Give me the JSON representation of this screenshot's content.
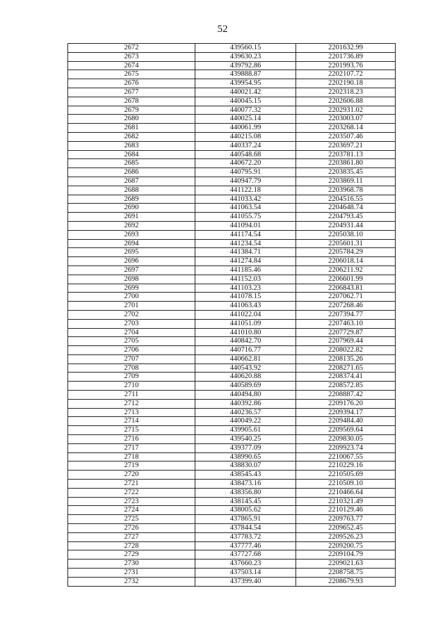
{
  "page_number": "52",
  "rows": [
    [
      "2672",
      "439560.15",
      "2201632.99"
    ],
    [
      "2673",
      "439630.23",
      "2201736.89"
    ],
    [
      "2674",
      "439792.86",
      "2201993.76"
    ],
    [
      "2675",
      "439888.87",
      "2202107.72"
    ],
    [
      "2676",
      "439954.95",
      "2202190.18"
    ],
    [
      "2677",
      "440021.42",
      "2202318.23"
    ],
    [
      "2678",
      "440045.15",
      "2202606.88"
    ],
    [
      "2679",
      "440077.32",
      "2202931.02"
    ],
    [
      "2680",
      "440025.14",
      "2203003.07"
    ],
    [
      "2681",
      "440061.99",
      "2203268.14"
    ],
    [
      "2682",
      "440215.08",
      "2203507.46"
    ],
    [
      "2683",
      "440337.24",
      "2203697.21"
    ],
    [
      "2684",
      "440548.68",
      "2203781.13"
    ],
    [
      "2685",
      "440672.20",
      "2203861.80"
    ],
    [
      "2686",
      "440795.91",
      "2203835.45"
    ],
    [
      "2687",
      "440947.79",
      "2203869.11"
    ],
    [
      "2688",
      "441122.18",
      "2203968.78"
    ],
    [
      "2689",
      "441033.42",
      "2204516.55"
    ],
    [
      "2690",
      "441063.54",
      "2204648.74"
    ],
    [
      "2691",
      "441055.75",
      "2204793.45"
    ],
    [
      "2692",
      "441094.01",
      "2204931.44"
    ],
    [
      "2693",
      "441174.54",
      "2205038.10"
    ],
    [
      "2694",
      "441234.54",
      "2205601.31"
    ],
    [
      "2695",
      "441384.71",
      "2205784.29"
    ],
    [
      "2696",
      "441274.84",
      "2206018.14"
    ],
    [
      "2697",
      "441185.46",
      "2206211.92"
    ],
    [
      "2698",
      "441152.03",
      "2206601.99"
    ],
    [
      "2699",
      "441103.23",
      "2206843.81"
    ],
    [
      "2700",
      "441078.15",
      "2207062.71"
    ],
    [
      "2701",
      "441063.43",
      "2207268.46"
    ],
    [
      "2702",
      "441022.04",
      "2207394.77"
    ],
    [
      "2703",
      "441051.09",
      "2207463.10"
    ],
    [
      "2704",
      "441010.80",
      "2207729.87"
    ],
    [
      "2705",
      "440842.70",
      "2207969.44"
    ],
    [
      "2706",
      "440716.77",
      "2208022.82"
    ],
    [
      "2707",
      "440662.81",
      "2208135.26"
    ],
    [
      "2708",
      "440543.92",
      "2208271.65"
    ],
    [
      "2709",
      "440620.88",
      "2208374.41"
    ],
    [
      "2710",
      "440589.69",
      "2208572.85"
    ],
    [
      "2711",
      "440494.80",
      "2208887.42"
    ],
    [
      "2712",
      "440392.86",
      "2209176.20"
    ],
    [
      "2713",
      "440236.57",
      "2209394.17"
    ],
    [
      "2714",
      "440049.22",
      "2209484.40"
    ],
    [
      "2715",
      "439905.61",
      "2209569.64"
    ],
    [
      "2716",
      "439540.25",
      "2209830.05"
    ],
    [
      "2717",
      "439377.09",
      "2209923.74"
    ],
    [
      "2718",
      "438990.65",
      "2210067.55"
    ],
    [
      "2719",
      "438830.07",
      "2210229.16"
    ],
    [
      "2720",
      "438545.43",
      "2210505.69"
    ],
    [
      "2721",
      "438473.16",
      "2210509.10"
    ],
    [
      "2722",
      "438356.80",
      "2210466.64"
    ],
    [
      "2723",
      "438145.45",
      "2210321.49"
    ],
    [
      "2724",
      "438005.62",
      "2210129.46"
    ],
    [
      "2725",
      "437865.91",
      "2209763.77"
    ],
    [
      "2726",
      "437844.54",
      "2209652.45"
    ],
    [
      "2727",
      "437783.72",
      "2209526.23"
    ],
    [
      "2728",
      "437777.46",
      "2209200.75"
    ],
    [
      "2729",
      "437727.68",
      "2209104.79"
    ],
    [
      "2730",
      "437660.23",
      "2209021.63"
    ],
    [
      "2731",
      "437503.14",
      "2208758.75"
    ],
    [
      "2732",
      "437399.40",
      "2208679.93"
    ]
  ]
}
